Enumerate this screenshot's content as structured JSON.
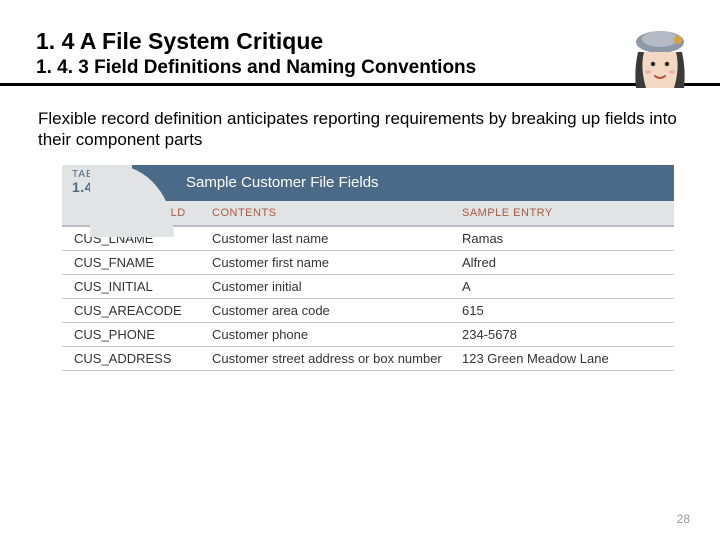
{
  "heading": {
    "title": "1. 4 A File System Critique",
    "subtitle": "1. 4. 3 Field Definitions and Naming Conventions"
  },
  "body": "Flexible record definition anticipates reporting requirements by breaking up fields into their component parts",
  "table": {
    "tab_label": "TABLE",
    "tab_number": "1.4",
    "caption": "Sample Customer File Fields",
    "columns": [
      "FIELD",
      "CONTENTS",
      "SAMPLE ENTRY"
    ],
    "rows": [
      [
        "CUS_LNAME",
        "Customer last name",
        "Ramas"
      ],
      [
        "CUS_FNAME",
        "Customer first name",
        "Alfred"
      ],
      [
        "CUS_INITIAL",
        "Customer initial",
        "A"
      ],
      [
        "CUS_AREACODE",
        "Customer area code",
        "615"
      ],
      [
        "CUS_PHONE",
        "Customer phone",
        "234-5678"
      ],
      [
        "CUS_ADDRESS",
        "Customer street address or box number",
        "123 Green Meadow Lane"
      ]
    ],
    "colors": {
      "header_bg": "#4b6a88",
      "tab_bg": "#e1e3e5",
      "col_head_text": "#a85b3e",
      "row_border": "#c1c5ca"
    }
  },
  "page_number": "28"
}
